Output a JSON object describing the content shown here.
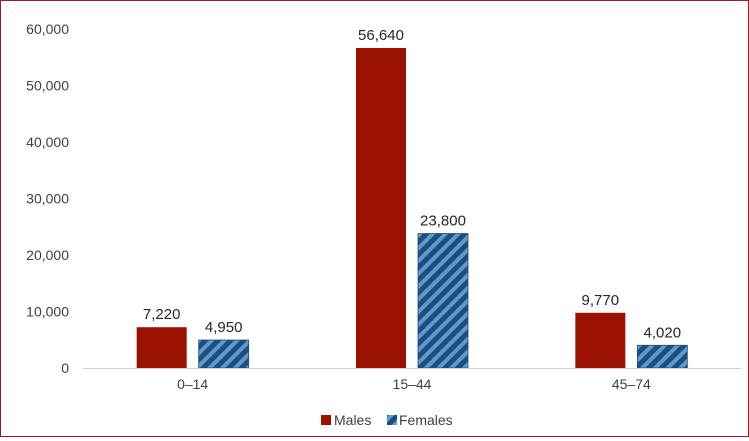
{
  "chart_data": {
    "type": "bar",
    "title": "",
    "xlabel": "",
    "ylabel": "",
    "categories": [
      "0–14",
      "15–44",
      "45–74"
    ],
    "series": [
      {
        "name": "Males",
        "values": [
          7220,
          56640,
          9770
        ],
        "color": "#9b1200",
        "pattern": "solid"
      },
      {
        "name": "Females",
        "values": [
          4950,
          23800,
          4020
        ],
        "color": "#2e75b6",
        "pattern": "diagonal-hatch"
      }
    ],
    "data_labels": [
      [
        "7,220",
        "56,640",
        "9,770"
      ],
      [
        "4,950",
        "23,800",
        "4,020"
      ]
    ],
    "ylim": [
      0,
      60000
    ],
    "yticks": [
      0,
      10000,
      20000,
      30000,
      40000,
      50000,
      60000
    ],
    "ytick_labels": [
      "0",
      "10,000",
      "20,000",
      "30,000",
      "40,000",
      "50,000",
      "60,000"
    ],
    "grid": false,
    "legend_position": "bottom"
  }
}
